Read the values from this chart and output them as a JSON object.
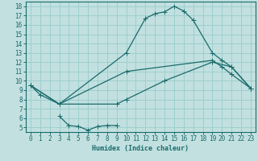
{
  "xlabel": "Humidex (Indice chaleur)",
  "bg_color": "#c2e0e0",
  "grid_color": "#9ecece",
  "line_color": "#1a6b6b",
  "xlim": [
    -0.5,
    23.5
  ],
  "ylim": [
    4.5,
    18.5
  ],
  "xticks": [
    0,
    1,
    2,
    3,
    4,
    5,
    6,
    7,
    8,
    9,
    10,
    11,
    12,
    13,
    14,
    15,
    16,
    17,
    18,
    19,
    20,
    21,
    22,
    23
  ],
  "yticks": [
    5,
    6,
    7,
    8,
    9,
    10,
    11,
    12,
    13,
    14,
    15,
    16,
    17,
    18
  ],
  "line1_x": [
    0,
    1,
    3,
    10,
    12,
    13,
    14,
    15,
    16,
    17,
    19,
    20,
    21,
    23
  ],
  "line1_y": [
    9.5,
    8.5,
    7.5,
    13.0,
    16.7,
    17.2,
    17.4,
    18.0,
    17.5,
    16.5,
    13.0,
    12.2,
    11.5,
    9.2
  ],
  "line2_x": [
    0,
    3,
    10,
    19,
    20,
    21,
    23
  ],
  "line2_y": [
    9.5,
    7.5,
    11.0,
    12.2,
    11.5,
    10.7,
    9.2
  ],
  "line3_x": [
    0,
    3,
    9,
    10,
    14,
    19,
    21,
    23
  ],
  "line3_y": [
    9.5,
    7.5,
    7.5,
    8.0,
    10.0,
    12.0,
    11.5,
    9.2
  ],
  "line4_x": [
    3,
    4,
    5,
    6,
    7,
    8,
    9
  ],
  "line4_y": [
    6.2,
    5.2,
    5.1,
    4.7,
    5.1,
    5.2,
    5.2
  ],
  "xlabel_fontsize": 6,
  "tick_fontsize": 5.5
}
